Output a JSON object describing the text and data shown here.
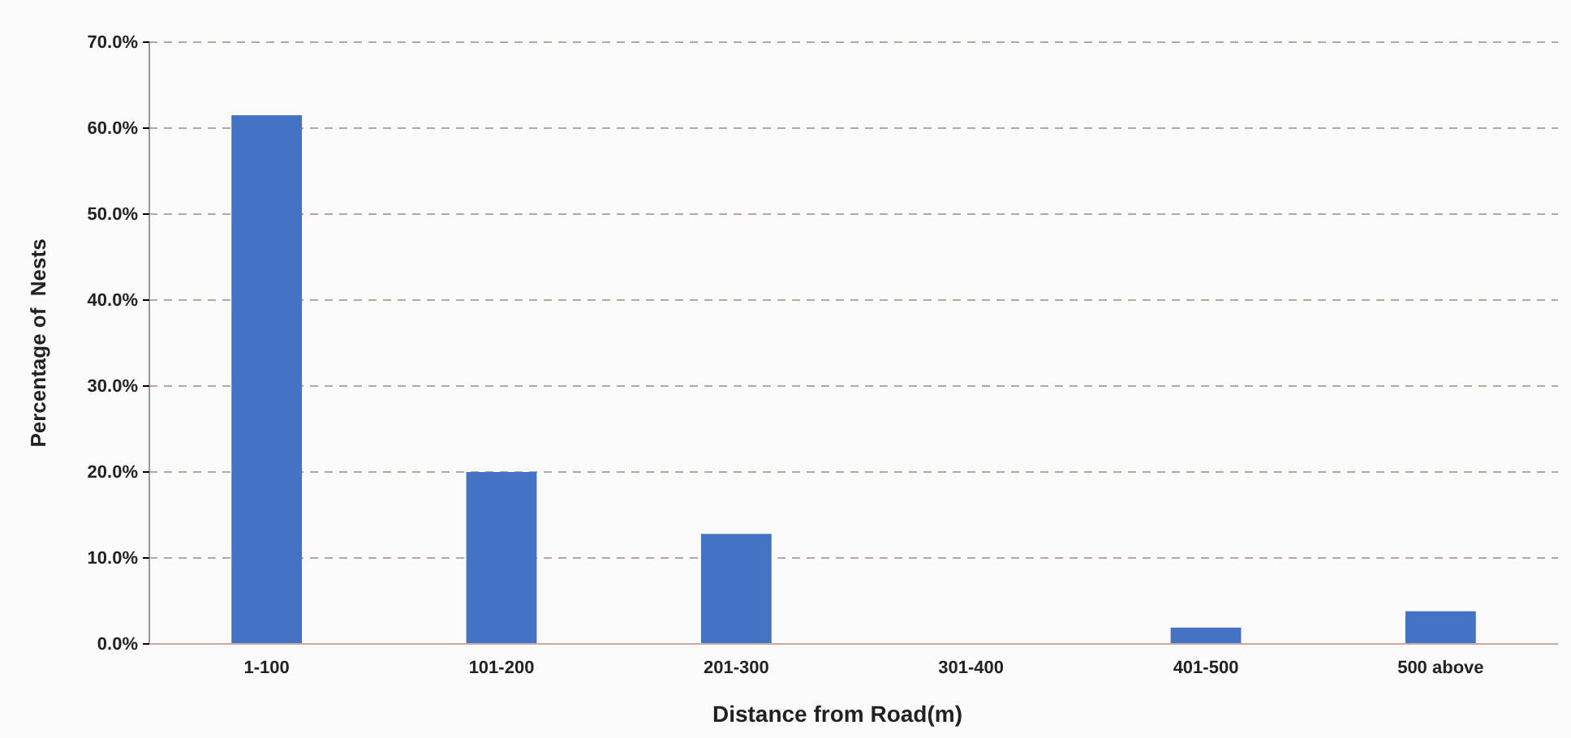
{
  "chart_data": {
    "type": "bar",
    "xlabel": "Distance from Road(m)",
    "ylabel": "Percentage of  Nests",
    "categories": [
      "1-100",
      "101-200",
      "201-300",
      "301-400",
      "401-500",
      "500 above"
    ],
    "values": [
      61.5,
      20.0,
      12.8,
      0,
      1.9,
      3.8
    ],
    "color": "#4472c4",
    "ylim": [
      0,
      70
    ],
    "yticks": [
      {
        "value": 0,
        "label": "0.0%"
      },
      {
        "value": 10,
        "label": "10.0%"
      },
      {
        "value": 20,
        "label": "20.0%"
      },
      {
        "value": 30,
        "label": "30.0%"
      },
      {
        "value": 40,
        "label": "40.0%"
      },
      {
        "value": 50,
        "label": "50.0%"
      },
      {
        "value": 60,
        "label": "60.0%"
      },
      {
        "value": 70,
        "label": "70.0%"
      }
    ],
    "grid": "y",
    "line_style": "dashed"
  }
}
